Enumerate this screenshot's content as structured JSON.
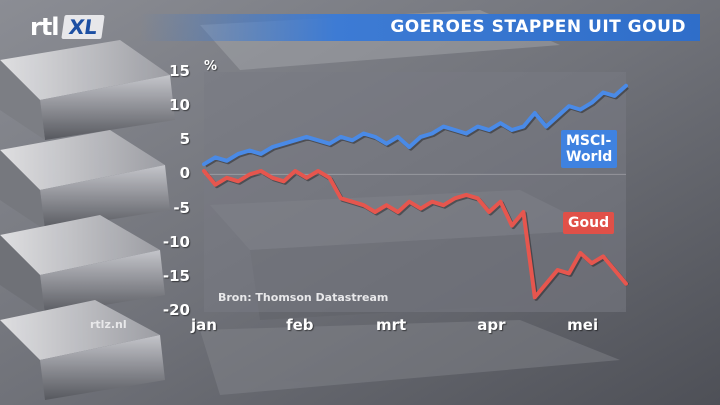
{
  "header": {
    "logo_rtl": "rtl",
    "logo_xl": "XL",
    "title": "GOEROES STAPPEN UIT GOUD"
  },
  "website": "rtlz.nl",
  "colors": {
    "msci": "#4a8ae6",
    "goud": "#e6564e",
    "title_bar": "#3d7bd4"
  },
  "chart_data": {
    "type": "line",
    "title": "GOEROES STAPPEN UIT GOUD",
    "ylabel": "%",
    "ylim": [
      -20,
      15
    ],
    "yticks": [
      15,
      10,
      5,
      0,
      -5,
      -10,
      -15,
      -20
    ],
    "xlim": [
      0,
      18.5
    ],
    "xticks": [
      {
        "label": "jan",
        "x": 0
      },
      {
        "label": "feb",
        "x": 4.2
      },
      {
        "label": "mrt",
        "x": 8.2
      },
      {
        "label": "apr",
        "x": 12.6
      },
      {
        "label": "mei",
        "x": 16.6
      }
    ],
    "source": "Bron: Thomson Datastream",
    "series": [
      {
        "name": "MSCI-\nWorld",
        "label_lines": [
          "MSCI-",
          "World"
        ],
        "color": "#4a8ae6",
        "x": [
          0,
          0.5,
          1,
          1.5,
          2,
          2.5,
          3,
          3.5,
          4,
          4.5,
          5,
          5.5,
          6,
          6.5,
          7,
          7.5,
          8,
          8.5,
          9,
          9.5,
          10,
          10.5,
          11,
          11.5,
          12,
          12.5,
          13,
          13.5,
          14,
          14.5,
          15,
          15.5,
          16,
          16.5,
          17,
          17.5,
          18,
          18.5
        ],
        "values": [
          1.5,
          2.5,
          2.0,
          3.0,
          3.5,
          3.0,
          4.0,
          4.5,
          5.0,
          5.5,
          5.0,
          4.5,
          5.5,
          5.0,
          6.0,
          5.5,
          4.5,
          5.5,
          4.0,
          5.5,
          6.0,
          7.0,
          6.5,
          6.0,
          7.0,
          6.5,
          7.5,
          6.5,
          7.0,
          9.0,
          7.0,
          8.5,
          10.0,
          9.5,
          10.5,
          12.0,
          11.5,
          13.0
        ]
      },
      {
        "name": "Goud",
        "label_lines": [
          "Goud"
        ],
        "color": "#e6564e",
        "x": [
          0,
          0.5,
          1,
          1.5,
          2,
          2.5,
          3,
          3.5,
          4,
          4.5,
          5,
          5.5,
          6,
          6.5,
          7,
          7.5,
          8,
          8.5,
          9,
          9.5,
          10,
          10.5,
          11,
          11.5,
          12,
          12.5,
          13,
          13.5,
          14,
          14.5,
          15,
          15.5,
          16,
          16.5,
          17,
          17.5,
          18,
          18.5
        ],
        "values": [
          0.5,
          -1.5,
          -0.5,
          -1.0,
          0.0,
          0.5,
          -0.5,
          -1.0,
          0.5,
          -0.5,
          0.5,
          -0.5,
          -3.5,
          -4.0,
          -4.5,
          -5.5,
          -4.5,
          -5.5,
          -4.0,
          -5.0,
          -4.0,
          -4.5,
          -3.5,
          -3.0,
          -3.5,
          -5.5,
          -4.0,
          -7.5,
          -5.5,
          -18.0,
          -16.0,
          -14.0,
          -14.5,
          -11.5,
          -13.0,
          -12.0,
          -14.0,
          -16.0
        ]
      }
    ]
  }
}
